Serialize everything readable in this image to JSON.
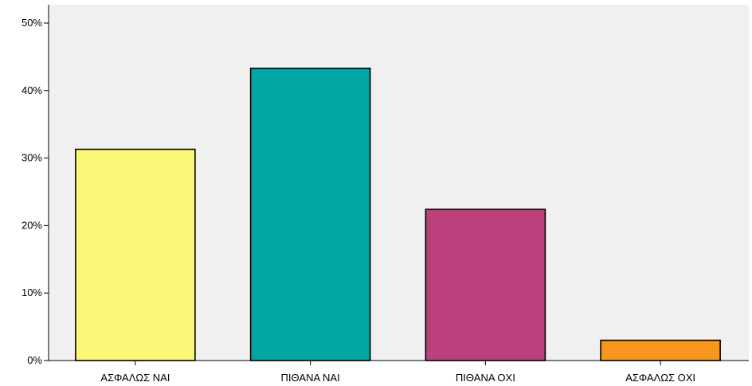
{
  "chart_data": {
    "type": "bar",
    "categories": [
      "ΑΣΦΑΛΩΣ ΝΑΙ",
      "ΠΙΘΑΝΑ ΝΑΙ",
      "ΠΙΘΑΝΑ ΟΧΙ",
      "ΑΣΦΑΛΩΣ ΟΧΙ"
    ],
    "values": [
      31.3,
      43.3,
      22.4,
      3.0
    ],
    "bar_colors": [
      "#faf777",
      "#00a7a2",
      "#bb417d",
      "#f8961e"
    ],
    "ylim": [
      0,
      50
    ],
    "yticks": [
      0,
      10,
      20,
      30,
      40,
      50
    ],
    "ytick_labels": [
      "0%",
      "10%",
      "20%",
      "30%",
      "40%",
      "50%"
    ],
    "title": "",
    "xlabel": "",
    "ylabel": "",
    "grid": false,
    "plot_background": "#f0f0f0"
  }
}
